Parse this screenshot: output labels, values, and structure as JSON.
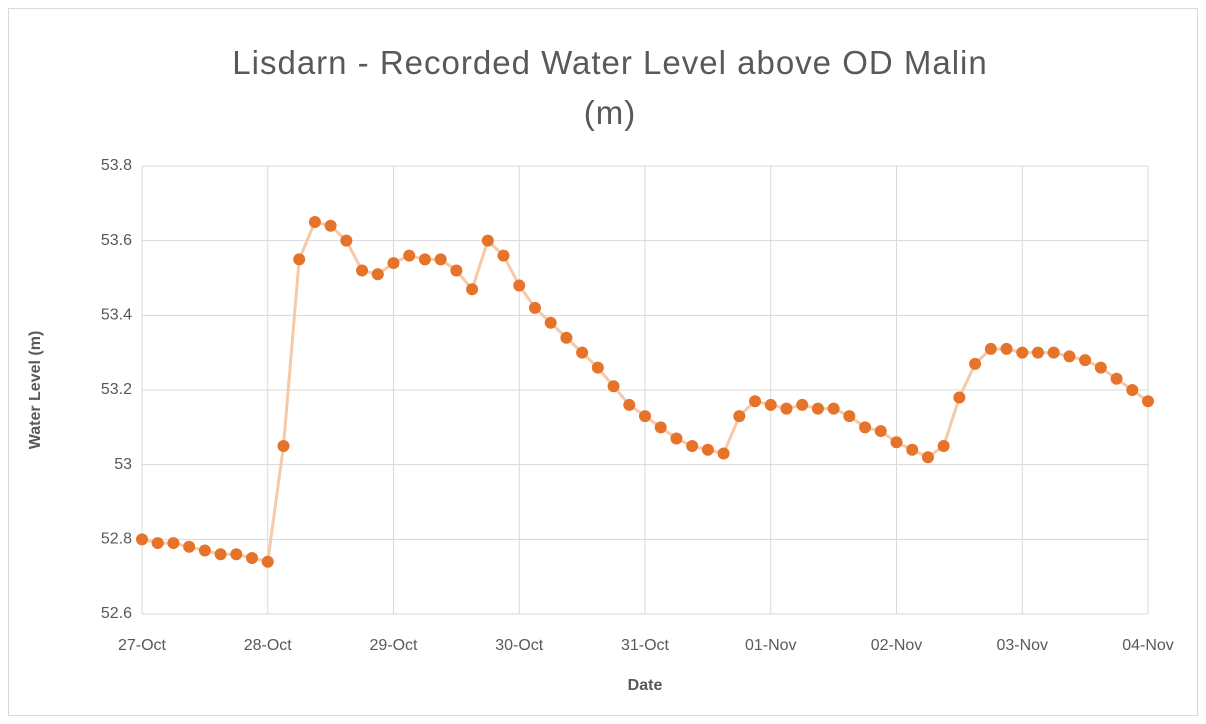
{
  "chart_data": {
    "type": "line",
    "title": "Lisdarn - Recorded Water Level above OD Malin (m)",
    "x_label": "Date",
    "y_label": "Water Level (m)",
    "x": [
      0,
      0.125,
      0.25,
      0.375,
      0.5,
      0.625,
      0.75,
      0.875,
      1,
      1.125,
      1.25,
      1.375,
      1.5,
      1.625,
      1.75,
      1.875,
      2,
      2.125,
      2.25,
      2.375,
      2.5,
      2.625,
      2.75,
      2.875,
      3,
      3.125,
      3.25,
      3.375,
      3.5,
      3.625,
      3.75,
      3.875,
      4,
      4.125,
      4.25,
      4.375,
      4.5,
      4.625,
      4.75,
      4.875,
      5,
      5.125,
      5.25,
      5.375,
      5.5,
      5.625,
      5.75,
      5.875,
      6,
      6.125,
      6.25,
      6.375,
      6.5,
      6.625,
      6.75,
      6.875,
      7,
      7.125,
      7.25,
      7.375,
      7.5,
      7.625,
      7.75,
      7.875,
      8
    ],
    "series": [
      {
        "color": "#e5742a",
        "line_color": "#f6c9a8",
        "values": [
          52.8,
          52.79,
          52.79,
          52.78,
          52.77,
          52.76,
          52.76,
          52.75,
          52.74,
          53.05,
          53.55,
          53.65,
          53.64,
          53.6,
          53.52,
          53.51,
          53.54,
          53.56,
          53.55,
          53.55,
          53.52,
          53.47,
          53.6,
          53.56,
          53.48,
          53.42,
          53.38,
          53.34,
          53.3,
          53.26,
          53.21,
          53.16,
          53.13,
          53.1,
          53.07,
          53.05,
          53.04,
          53.03,
          53.13,
          53.17,
          53.16,
          53.15,
          53.16,
          53.15,
          53.15,
          53.13,
          53.1,
          53.09,
          53.06,
          53.04,
          53.02,
          53.05,
          53.18,
          53.27,
          53.31,
          53.31,
          53.3,
          53.3,
          53.3,
          53.29,
          53.28,
          53.26,
          53.23,
          53.2,
          53.17
        ]
      }
    ],
    "xlim": [
      0,
      8
    ],
    "xticks": [
      {
        "value": 0,
        "label": "27-Oct"
      },
      {
        "value": 1,
        "label": "28-Oct"
      },
      {
        "value": 2,
        "label": "29-Oct"
      },
      {
        "value": 3,
        "label": "30-Oct"
      },
      {
        "value": 4,
        "label": "31-Oct"
      },
      {
        "value": 5,
        "label": "01-Nov"
      },
      {
        "value": 6,
        "label": "02-Nov"
      },
      {
        "value": 7,
        "label": "03-Nov"
      },
      {
        "value": 8,
        "label": "04-Nov"
      }
    ],
    "ylim": [
      52.6,
      53.8
    ],
    "yticks": [
      52.6,
      52.8,
      53,
      53.2,
      53.4,
      53.6,
      53.8
    ],
    "grid": true
  }
}
